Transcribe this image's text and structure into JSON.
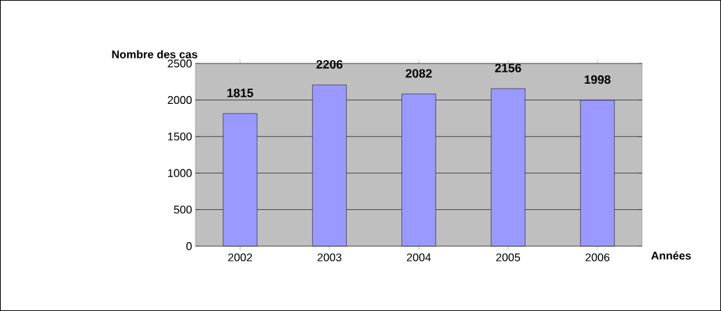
{
  "chart_data": {
    "type": "bar",
    "xlabel": "Années",
    "ylabel": "Nombre des cas",
    "categories": [
      "2002",
      "2003",
      "2004",
      "2005",
      "2006"
    ],
    "values": [
      1815,
      2206,
      2082,
      2156,
      1998
    ],
    "color": "#9999ff",
    "ylim": [
      0,
      2500
    ],
    "yticks": [
      0,
      500,
      1000,
      1500,
      2000,
      2500
    ],
    "grid": "y",
    "data_labels": true
  }
}
